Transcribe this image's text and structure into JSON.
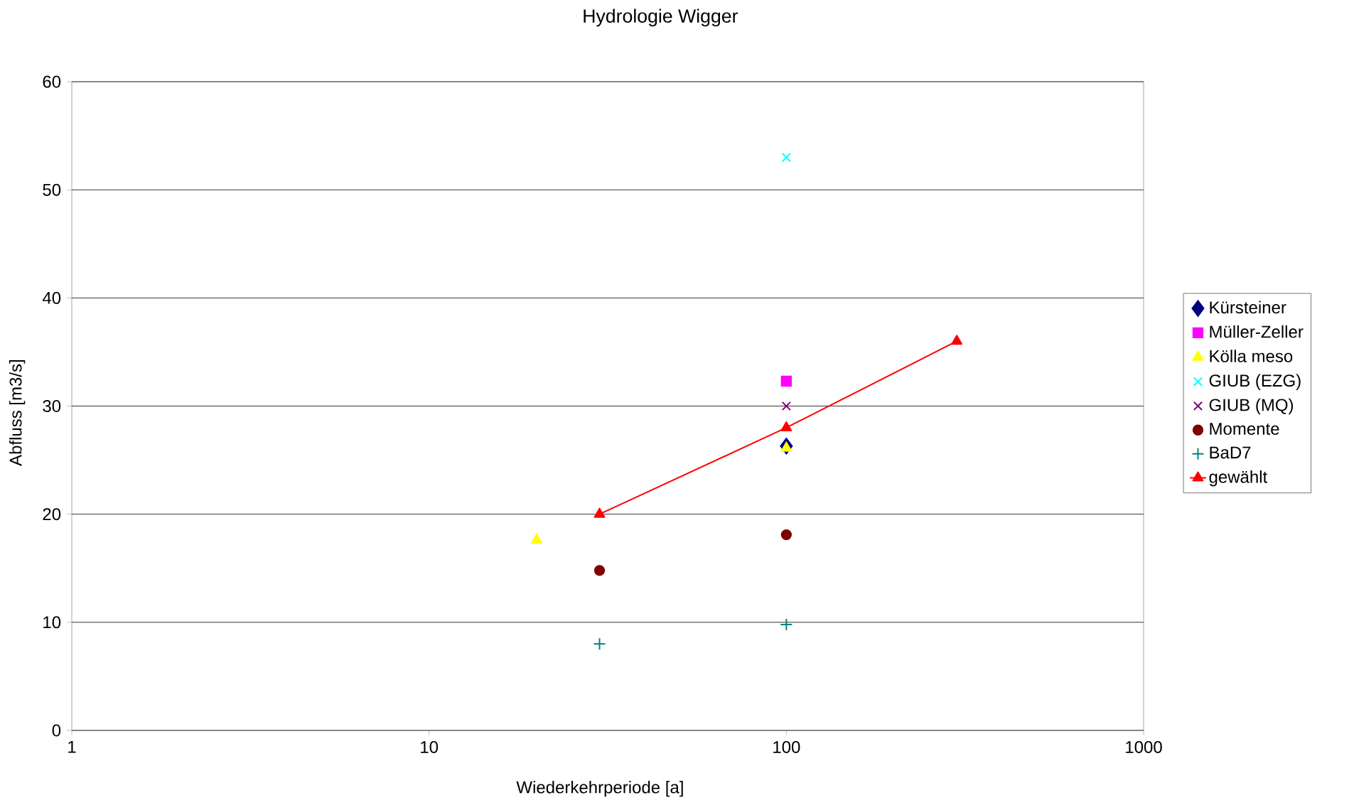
{
  "chart_data": {
    "type": "scatter",
    "title": "Hydrologie Wigger",
    "xlabel": "Wiederkehrperiode [a]",
    "ylabel": "Abfluss [m3/s]",
    "xlim": [
      1,
      1000
    ],
    "ylim": [
      0,
      60
    ],
    "xticks": [
      1,
      10,
      100,
      1000
    ],
    "yticks": [
      0,
      10,
      20,
      30,
      40,
      50,
      60
    ],
    "log": "x",
    "grid": "y",
    "legend": "right",
    "series": [
      {
        "name": "Kürsteiner",
        "color": "#000080",
        "marker": "diamond",
        "x": [
          100
        ],
        "values": [
          26.3
        ]
      },
      {
        "name": "Müller-Zeller",
        "color": "#ff00ff",
        "marker": "square",
        "x": [
          100
        ],
        "values": [
          32.3
        ]
      },
      {
        "name": "Kölla meso",
        "color": "#ffff00",
        "marker": "triangle",
        "x": [
          20,
          100
        ],
        "values": [
          17.6,
          26.1
        ]
      },
      {
        "name": "GIUB (EZG)",
        "color": "#00ffff",
        "marker": "cross",
        "x": [
          100
        ],
        "values": [
          53
        ]
      },
      {
        "name": "GIUB (MQ)",
        "color": "#800080",
        "marker": "cross",
        "x": [
          100
        ],
        "values": [
          30
        ]
      },
      {
        "name": "Momente",
        "color": "#800000",
        "marker": "circle",
        "x": [
          30,
          100
        ],
        "values": [
          14.8,
          18.1
        ]
      },
      {
        "name": "BaD7",
        "color": "#008080",
        "marker": "plus",
        "x": [
          30,
          100
        ],
        "values": [
          8,
          9.8
        ]
      },
      {
        "name": "gewählt",
        "color": "#ff0000",
        "marker": "triangle",
        "type": "line",
        "x": [
          30,
          100,
          300
        ],
        "values": [
          20,
          28,
          36
        ]
      }
    ]
  }
}
